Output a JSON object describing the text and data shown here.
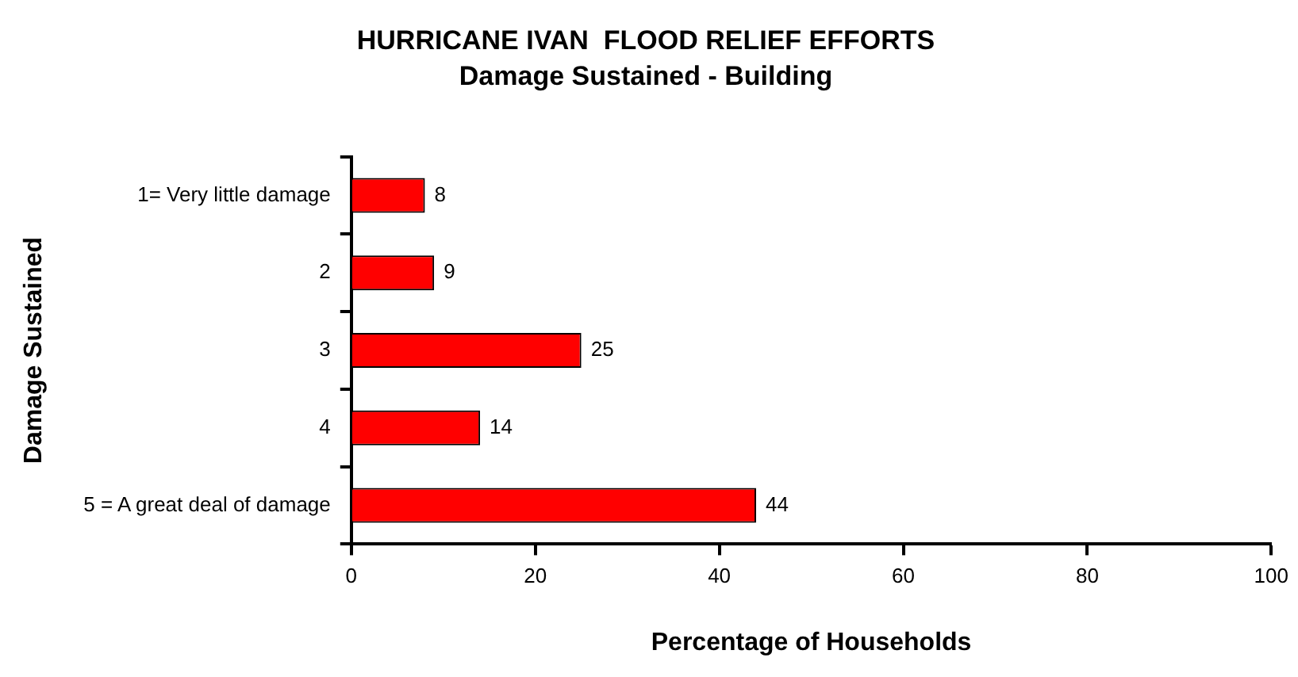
{
  "chart_data": {
    "type": "bar",
    "orientation": "horizontal",
    "title": "HURRICANE IVAN  FLOOD RELIEF EFFORTS",
    "subtitle": "Damage Sustained - Building",
    "xlabel": "Percentage of Households",
    "ylabel": "Damage Sustained",
    "categories": [
      "1= Very little damage",
      "2",
      "3",
      "4",
      "5 = A great deal of damage"
    ],
    "values": [
      8,
      9,
      25,
      14,
      44
    ],
    "color": "#ff0000",
    "data_labels": true,
    "xlim": [
      0,
      100
    ],
    "xticks": [
      0,
      20,
      40,
      60,
      80,
      100
    ],
    "grid": false,
    "legend": false
  }
}
